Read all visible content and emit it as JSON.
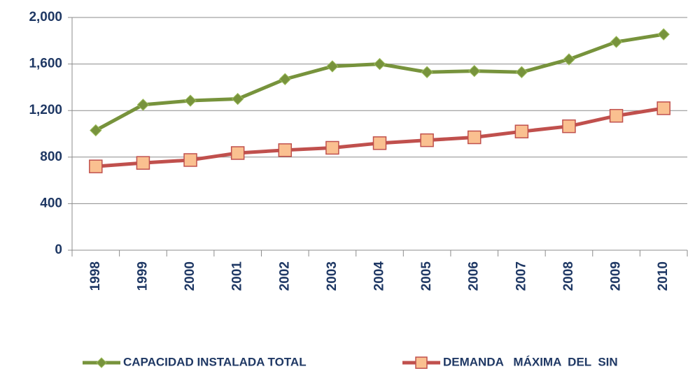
{
  "chart_data": {
    "type": "line",
    "categories": [
      "1998",
      "1999",
      "2000",
      "2001",
      "2002",
      "2003",
      "2004",
      "2005",
      "2006",
      "2007",
      "2008",
      "2009",
      "2010"
    ],
    "series": [
      {
        "name": "CAPACIDAD INSTALADA TOTAL",
        "color": "#77933c",
        "marker": "diamond",
        "values": [
          1030,
          1250,
          1285,
          1300,
          1470,
          1580,
          1600,
          1530,
          1540,
          1530,
          1640,
          1790,
          1855
        ]
      },
      {
        "name": "DEMANDA   MÁXIMA  DEL  SIN",
        "color": "#c0504d",
        "marker": "square",
        "values": [
          720,
          750,
          775,
          835,
          860,
          880,
          920,
          945,
          970,
          1020,
          1065,
          1155,
          1220
        ]
      }
    ],
    "ylim": [
      0,
      2000
    ],
    "yticks": [
      0,
      400,
      800,
      {
        "value": 1200,
        "label": "1,200"
      },
      {
        "value": 1600,
        "label": "1,600"
      },
      {
        "value": 2000,
        "label": "2,000"
      }
    ],
    "grid": true,
    "legend": "bottom"
  }
}
